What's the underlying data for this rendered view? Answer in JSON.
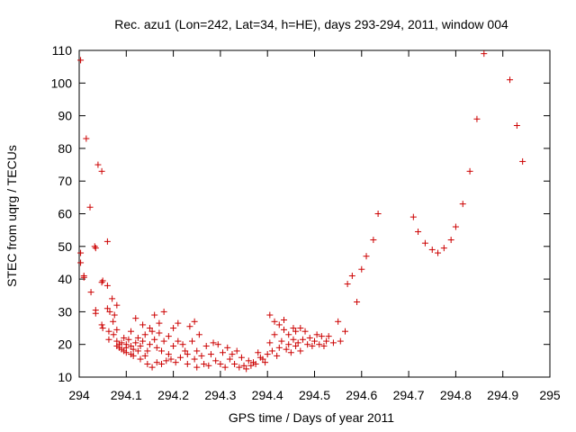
{
  "chart_data": {
    "type": "scatter",
    "title": "Rec. azu1 (Lon=242, Lat=34, h=HE), days 293-294, 2011, window 004",
    "xlabel": "GPS time / Days of year 2011",
    "ylabel": "STEC from uqrg / TECUs",
    "xlim": [
      294,
      295
    ],
    "ylim": [
      10,
      110
    ],
    "x_ticks": [
      "294",
      "294.1",
      "294.2",
      "294.3",
      "294.4",
      "294.5",
      "294.6",
      "294.7",
      "294.8",
      "294.9",
      "295"
    ],
    "y_ticks": [
      "10",
      "20",
      "30",
      "40",
      "50",
      "60",
      "70",
      "80",
      "90",
      "100",
      "110"
    ],
    "grid": false,
    "marker": "+",
    "marker_color": "#cc0000",
    "series": [
      {
        "points": [
          [
            294.003,
            107.0
          ],
          [
            294.003,
            48.0
          ],
          [
            294.003,
            45.0
          ],
          [
            294.01,
            41.0
          ],
          [
            294.01,
            40.5
          ],
          [
            294.015,
            83.0
          ],
          [
            294.023,
            62.0
          ],
          [
            294.025,
            36.0
          ],
          [
            294.033,
            50.0
          ],
          [
            294.035,
            49.5
          ],
          [
            294.035,
            30.5
          ],
          [
            294.035,
            29.5
          ],
          [
            294.04,
            75.0
          ],
          [
            294.048,
            73.0
          ],
          [
            294.048,
            39.0
          ],
          [
            294.05,
            39.5
          ],
          [
            294.048,
            26.0
          ],
          [
            294.05,
            25.0
          ],
          [
            294.06,
            51.5
          ],
          [
            294.06,
            38.0
          ],
          [
            294.06,
            31.0
          ],
          [
            294.065,
            30.0
          ],
          [
            294.063,
            24.0
          ],
          [
            294.063,
            21.5
          ],
          [
            294.07,
            34.0
          ],
          [
            294.072,
            27.0
          ],
          [
            294.073,
            23.0
          ],
          [
            294.075,
            29.0
          ],
          [
            294.08,
            32.0
          ],
          [
            294.08,
            24.5
          ],
          [
            294.08,
            21.0
          ],
          [
            294.08,
            19.5
          ],
          [
            294.085,
            19.0
          ],
          [
            294.085,
            20.0
          ],
          [
            294.09,
            18.5
          ],
          [
            294.09,
            20.5
          ],
          [
            294.095,
            22.0
          ],
          [
            294.095,
            18.0
          ],
          [
            294.1,
            17.5
          ],
          [
            294.1,
            19.0
          ],
          [
            294.1,
            20.0
          ],
          [
            294.105,
            21.5
          ],
          [
            294.11,
            24.0
          ],
          [
            294.11,
            17.0
          ],
          [
            294.11,
            19.5
          ],
          [
            294.115,
            16.5
          ],
          [
            294.115,
            18.5
          ],
          [
            294.12,
            20.5
          ],
          [
            294.12,
            28.0
          ],
          [
            294.125,
            22.0
          ],
          [
            294.125,
            18.0
          ],
          [
            294.13,
            15.5
          ],
          [
            294.13,
            19.5
          ],
          [
            294.135,
            26.0
          ],
          [
            294.135,
            21.0
          ],
          [
            294.14,
            23.0
          ],
          [
            294.14,
            16.5
          ],
          [
            294.145,
            14.0
          ],
          [
            294.145,
            18.0
          ],
          [
            294.15,
            25.0
          ],
          [
            294.15,
            20.0
          ],
          [
            294.155,
            13.0
          ],
          [
            294.155,
            24.0
          ],
          [
            294.16,
            29.0
          ],
          [
            294.16,
            21.5
          ],
          [
            294.165,
            14.5
          ],
          [
            294.165,
            19.0
          ],
          [
            294.17,
            26.5
          ],
          [
            294.17,
            23.5
          ],
          [
            294.175,
            14.0
          ],
          [
            294.175,
            18.0
          ],
          [
            294.18,
            30.0
          ],
          [
            294.18,
            21.0
          ],
          [
            294.185,
            15.0
          ],
          [
            294.19,
            22.5
          ],
          [
            294.19,
            17.0
          ],
          [
            294.195,
            15.5
          ],
          [
            294.2,
            19.5
          ],
          [
            294.2,
            25.0
          ],
          [
            294.205,
            14.5
          ],
          [
            294.21,
            21.0
          ],
          [
            294.21,
            26.5
          ],
          [
            294.215,
            16.0
          ],
          [
            294.22,
            20.0
          ],
          [
            294.225,
            18.0
          ],
          [
            294.23,
            17.0
          ],
          [
            294.23,
            14.0
          ],
          [
            294.235,
            25.5
          ],
          [
            294.24,
            21.0
          ],
          [
            294.245,
            27.0
          ],
          [
            294.245,
            15.5
          ],
          [
            294.25,
            13.0
          ],
          [
            294.25,
            18.0
          ],
          [
            294.255,
            23.0
          ],
          [
            294.26,
            16.5
          ],
          [
            294.265,
            14.0
          ],
          [
            294.27,
            19.5
          ],
          [
            294.275,
            13.5
          ],
          [
            294.28,
            17.0
          ],
          [
            294.285,
            20.5
          ],
          [
            294.29,
            15.0
          ],
          [
            294.295,
            20.0
          ],
          [
            294.3,
            14.0
          ],
          [
            294.305,
            17.5
          ],
          [
            294.31,
            13.0
          ],
          [
            294.315,
            19.0
          ],
          [
            294.32,
            15.5
          ],
          [
            294.325,
            17.0
          ],
          [
            294.33,
            14.0
          ],
          [
            294.335,
            18.0
          ],
          [
            294.34,
            13.0
          ],
          [
            294.345,
            16.0
          ],
          [
            294.35,
            13.5
          ],
          [
            294.355,
            12.5
          ],
          [
            294.36,
            15.0
          ],
          [
            294.365,
            13.5
          ],
          [
            294.37,
            14.5
          ],
          [
            294.375,
            14.0
          ],
          [
            294.38,
            17.5
          ],
          [
            294.385,
            16.0
          ],
          [
            294.39,
            15.5
          ],
          [
            294.395,
            14.5
          ],
          [
            294.4,
            17.0
          ],
          [
            294.405,
            29.0
          ],
          [
            294.405,
            20.5
          ],
          [
            294.41,
            18.0
          ],
          [
            294.415,
            27.0
          ],
          [
            294.415,
            23.0
          ],
          [
            294.42,
            16.5
          ],
          [
            294.425,
            26.0
          ],
          [
            294.425,
            19.0
          ],
          [
            294.43,
            21.0
          ],
          [
            294.435,
            27.5
          ],
          [
            294.435,
            24.5
          ],
          [
            294.44,
            18.5
          ],
          [
            294.445,
            23.0
          ],
          [
            294.445,
            20.0
          ],
          [
            294.45,
            17.5
          ],
          [
            294.455,
            25.0
          ],
          [
            294.455,
            21.5
          ],
          [
            294.46,
            24.0
          ],
          [
            294.46,
            19.5
          ],
          [
            294.465,
            20.5
          ],
          [
            294.47,
            25.0
          ],
          [
            294.47,
            18.0
          ],
          [
            294.475,
            21.5
          ],
          [
            294.48,
            24.0
          ],
          [
            294.485,
            20.0
          ],
          [
            294.49,
            22.0
          ],
          [
            294.495,
            19.5
          ],
          [
            294.5,
            21.0
          ],
          [
            294.505,
            23.0
          ],
          [
            294.51,
            20.0
          ],
          [
            294.515,
            22.5
          ],
          [
            294.52,
            19.5
          ],
          [
            294.525,
            21.0
          ],
          [
            294.53,
            22.5
          ],
          [
            294.54,
            20.5
          ],
          [
            294.55,
            27.0
          ],
          [
            294.555,
            21.0
          ],
          [
            294.565,
            24.0
          ],
          [
            294.57,
            38.5
          ],
          [
            294.58,
            41.0
          ],
          [
            294.59,
            33.0
          ],
          [
            294.6,
            43.0
          ],
          [
            294.61,
            47.0
          ],
          [
            294.625,
            52.0
          ],
          [
            294.635,
            60.0
          ],
          [
            294.71,
            59.0
          ],
          [
            294.72,
            54.5
          ],
          [
            294.735,
            51.0
          ],
          [
            294.75,
            49.0
          ],
          [
            294.762,
            48.0
          ],
          [
            294.775,
            49.5
          ],
          [
            294.79,
            52.0
          ],
          [
            294.8,
            56.0
          ],
          [
            294.815,
            63.0
          ],
          [
            294.83,
            73.0
          ],
          [
            294.845,
            89.0
          ],
          [
            294.86,
            109.0
          ],
          [
            294.915,
            101.0
          ],
          [
            294.93,
            87.0
          ],
          [
            294.942,
            76.0
          ]
        ]
      }
    ]
  }
}
